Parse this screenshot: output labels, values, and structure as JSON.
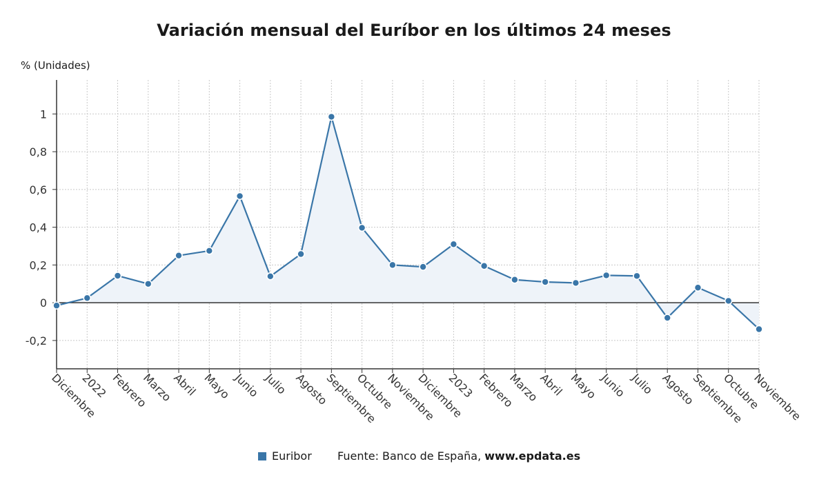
{
  "title": "Variación mensual del Euríbor en los últimos 24 meses",
  "unit_label": "% (Unidades)",
  "colors": {
    "series": "#3a76a8",
    "fill": "#eef3f9",
    "grid": "#c8c8c8",
    "axis": "#333333"
  },
  "legend": {
    "series_name": "Euribor",
    "source_text": "Fuente: Banco de España, ",
    "source_site": "www.epdata.es"
  },
  "chart_data": {
    "type": "line",
    "title": "Variación mensual del Euríbor en los últimos 24 meses",
    "ylabel": "% (Unidades)",
    "ylim": [
      -0.35,
      1.18
    ],
    "yticks": [
      -0.2,
      0,
      0.2,
      0.4,
      0.6,
      0.8,
      1
    ],
    "ytick_labels": [
      "-0,2",
      "0",
      "0,2",
      "0,4",
      "0,6",
      "0,8",
      "1"
    ],
    "grid": true,
    "legend_position": "bottom",
    "categories": [
      "Diciembre",
      "2022",
      "Febrero",
      "Marzo",
      "Abril",
      "Mayo",
      "Junio",
      "Julio",
      "Agosto",
      "Septiembre",
      "Octubre",
      "Noviembre",
      "Diciembre",
      "2023",
      "Febrero",
      "Marzo",
      "Abril",
      "Mayo",
      "Junio",
      "Julio",
      "Agosto",
      "Septiembre",
      "Octubre",
      "Noviembre"
    ],
    "series": [
      {
        "name": "Euribor",
        "values": [
          -0.015,
          0.025,
          0.143,
          0.1,
          0.25,
          0.275,
          0.565,
          0.14,
          0.258,
          0.985,
          0.397,
          0.2,
          0.19,
          0.31,
          0.195,
          0.122,
          0.11,
          0.105,
          0.145,
          0.142,
          -0.08,
          0.08,
          0.01,
          -0.14
        ]
      }
    ]
  }
}
